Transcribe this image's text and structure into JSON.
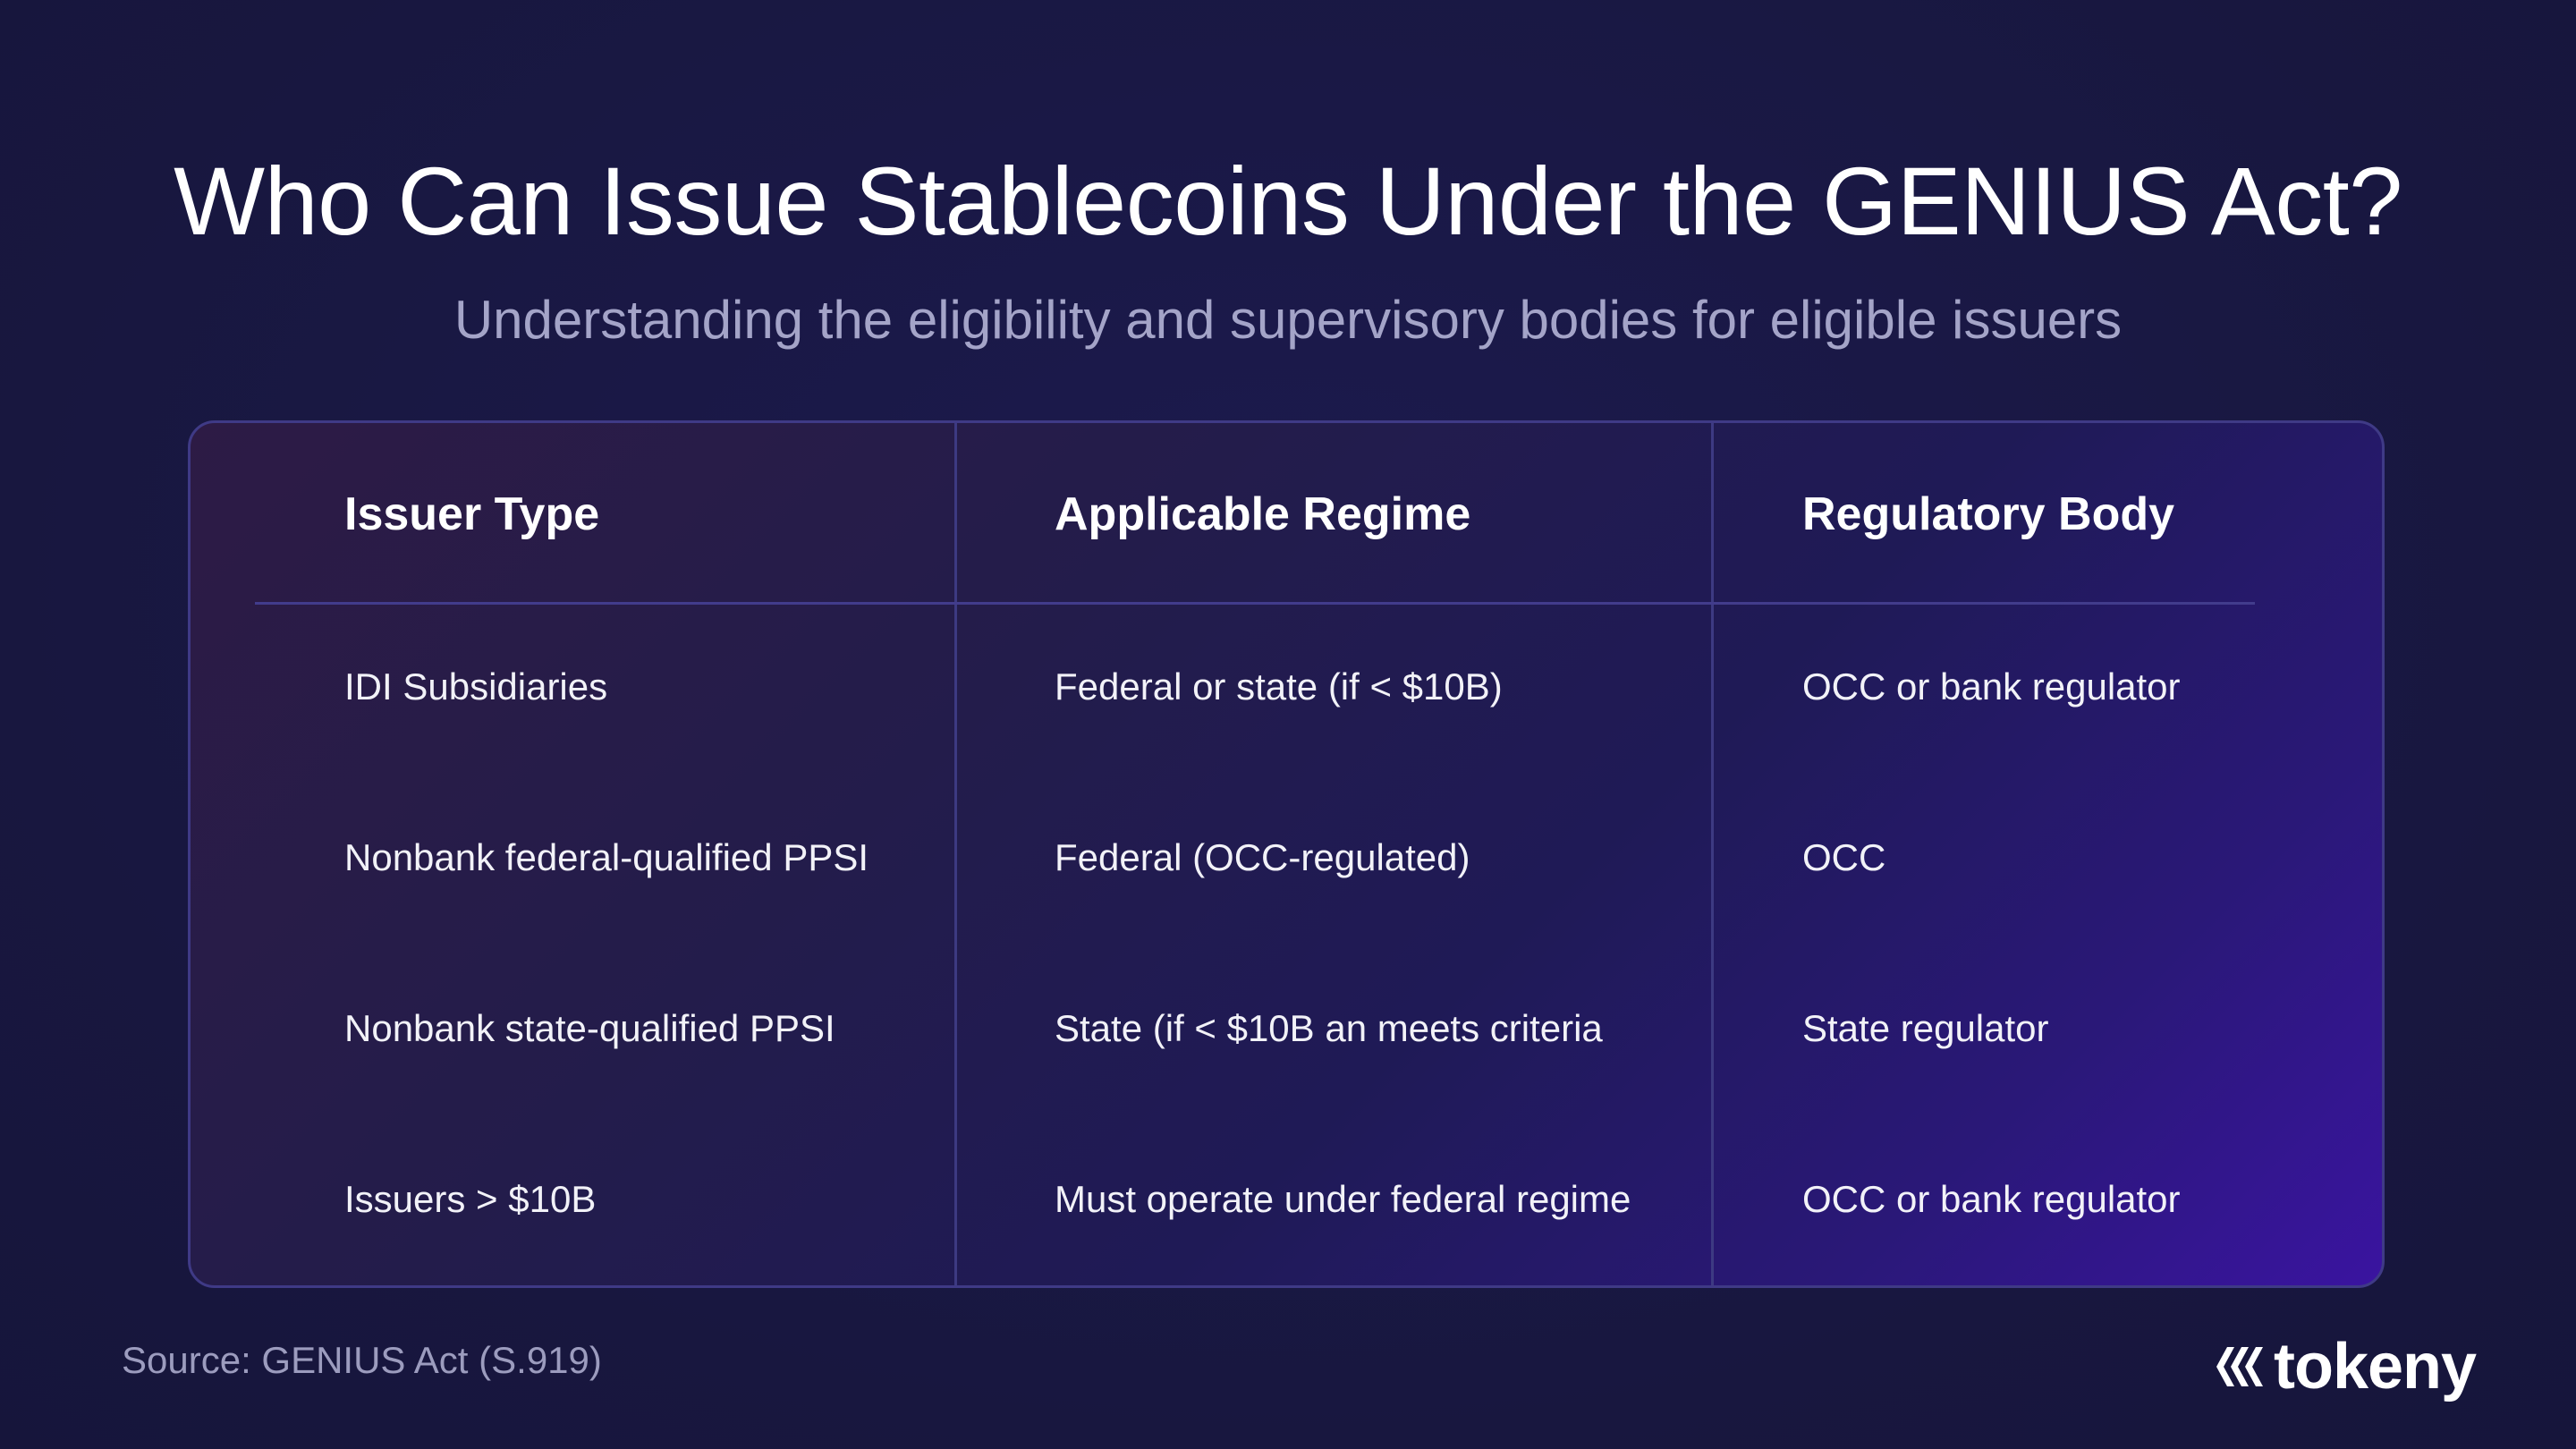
{
  "header": {
    "title": "Who Can Issue Stablecoins Under the GENIUS Act?",
    "subtitle": "Understanding the eligibility and supervisory bodies for eligible issuers"
  },
  "table": {
    "columns": [
      "Issuer Type",
      "Applicable Regime",
      "Regulatory Body"
    ],
    "rows": [
      [
        "IDI Subsidiaries",
        "Federal or state (if < $10B)",
        "OCC or bank regulator"
      ],
      [
        "Nonbank federal-qualified PPSI",
        "Federal (OCC-regulated)",
        "OCC"
      ],
      [
        "Nonbank state-qualified PPSI",
        "State (if < $10B an meets criteria",
        "State regulator"
      ],
      [
        "Issuers > $10B",
        "Must operate under federal regime",
        "OCC or bank regulator"
      ]
    ]
  },
  "footer": {
    "source": "Source: GENIUS Act (S.919)",
    "brand": "tokeny",
    "brand_icon": "tokeny-logo-icon"
  },
  "colors": {
    "background": "#1a184a",
    "text": "#ffffff",
    "muted": "#a4a4c8",
    "border": "#3f3a86"
  }
}
